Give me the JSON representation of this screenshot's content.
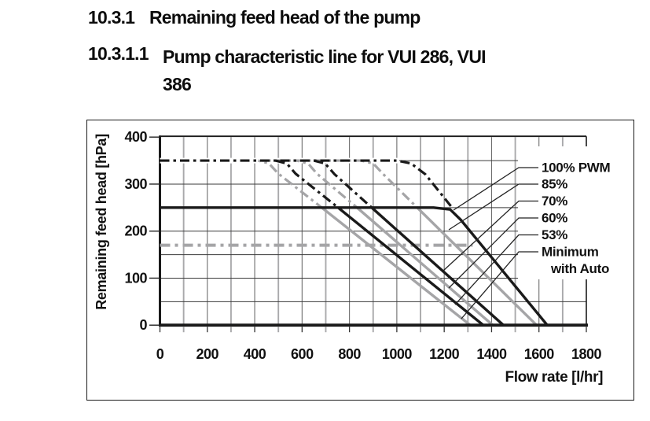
{
  "headings": {
    "h1": {
      "number": "10.3.1",
      "text": "Remaining feed head of the pump"
    },
    "h2": {
      "number": "10.3.1.1",
      "line1": "Pump characteristic line for VUI 286, VUI",
      "line2": "386"
    }
  },
  "chart_data": {
    "type": "line",
    "title": "",
    "xlabel": "Flow rate [l/hr]",
    "ylabel": "Remaining feed head [hPa]",
    "xlim": [
      0,
      1800
    ],
    "ylim": [
      0,
      400
    ],
    "x_ticks": [
      0,
      200,
      400,
      600,
      800,
      1000,
      1200,
      1400,
      1600,
      1800
    ],
    "y_ticks": [
      0,
      100,
      200,
      300,
      400
    ],
    "x_grid_step": 100,
    "y_grid_step": 50,
    "grid": true,
    "legend_position": "right-inside",
    "colors": {
      "black": "#1a1a1a",
      "gray": "#a5a5a7"
    },
    "series": [
      {
        "name": "100% PWM",
        "color": "#1a1a1a",
        "dashdot_upper": [
          [
            0,
            350
          ],
          [
            1000,
            350
          ],
          [
            1060,
            344
          ],
          [
            1120,
            321
          ],
          [
            1230,
            252
          ]
        ],
        "solid_lower": [
          [
            0,
            250
          ],
          [
            1155,
            250
          ],
          [
            1225,
            246
          ],
          [
            1270,
            224
          ],
          [
            1635,
            0
          ]
        ]
      },
      {
        "name": "85%",
        "color": "#a5a5a7",
        "dashdot_upper": [
          [
            430,
            350
          ],
          [
            850,
            350
          ],
          [
            900,
            344
          ],
          [
            945,
            320
          ],
          [
            1086,
            250
          ]
        ],
        "solid_lower": [
          [
            1086,
            250
          ],
          [
            1590,
            0
          ]
        ]
      },
      {
        "name": "70%",
        "color": "#1a1a1a",
        "dashdot_upper": [
          [
            650,
            350
          ],
          [
            697,
            344
          ],
          [
            737,
            321
          ],
          [
            894,
            250
          ]
        ],
        "solid_lower": [
          [
            894,
            250
          ],
          [
            1450,
            0
          ]
        ]
      },
      {
        "name": "60%",
        "color": "#a5a5a7",
        "dashdot_upper": [
          [
            578,
            350
          ],
          [
            625,
            344
          ],
          [
            663,
            322
          ],
          [
            832,
            250
          ]
        ],
        "solid_lower": [
          [
            832,
            250
          ],
          [
            1405,
            0
          ]
        ]
      },
      {
        "name": "53%",
        "color": "#1a1a1a",
        "dashdot_upper": [
          [
            488,
            350
          ],
          [
            535,
            344
          ],
          [
            573,
            322
          ],
          [
            752,
            250
          ]
        ],
        "solid_lower": [
          [
            752,
            250
          ],
          [
            1365,
            0
          ]
        ]
      },
      {
        "name": "Minimum with Auto",
        "color": "#a5a5a7",
        "dashdot_upper": [
          [
            415,
            350
          ],
          [
            460,
            344
          ],
          [
            498,
            323
          ],
          [
            683,
            250
          ]
        ],
        "solid_lower": [
          [
            683,
            250
          ],
          [
            1310,
            0
          ]
        ]
      }
    ],
    "reference_lines": [
      {
        "name": "maximum-feed-head",
        "head_hPa": 350,
        "from_flow": 0,
        "to_flow": 1010,
        "style": "dash-dot",
        "color": "#1a1a1a"
      },
      {
        "name": "minimum-feed-head",
        "head_hPa": 170,
        "from_flow": 0,
        "to_flow": 1320,
        "style": "dash-dot",
        "color": "#a5a5a7"
      }
    ],
    "legend": [
      {
        "label": "100% PWM"
      },
      {
        "label": "85%"
      },
      {
        "label": "70%"
      },
      {
        "label": "60%"
      },
      {
        "label": "53%"
      },
      {
        "label": "Minimum",
        "label2": "with Auto"
      }
    ]
  }
}
